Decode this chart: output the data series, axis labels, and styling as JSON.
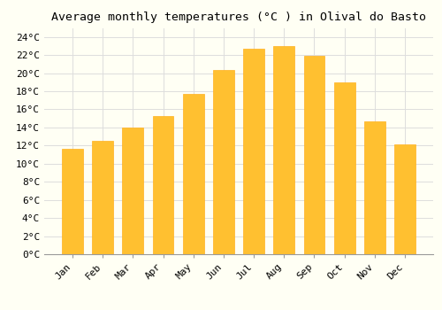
{
  "title": "Average monthly temperatures (°C ) in Olival do Basto",
  "months": [
    "Jan",
    "Feb",
    "Mar",
    "Apr",
    "May",
    "Jun",
    "Jul",
    "Aug",
    "Sep",
    "Oct",
    "Nov",
    "Dec"
  ],
  "values": [
    11.6,
    12.5,
    14.0,
    15.3,
    17.7,
    20.4,
    22.7,
    23.0,
    21.9,
    19.0,
    14.7,
    12.1
  ],
  "bar_color": "#FFC030",
  "bar_edge_color": "#FFB020",
  "background_color": "#FFFFF4",
  "grid_color": "#DDDDDD",
  "ylim": [
    0,
    25
  ],
  "yticks": [
    0,
    2,
    4,
    6,
    8,
    10,
    12,
    14,
    16,
    18,
    20,
    22,
    24
  ],
  "title_fontsize": 9.5,
  "tick_fontsize": 8,
  "font_family": "monospace",
  "bar_width": 0.7
}
